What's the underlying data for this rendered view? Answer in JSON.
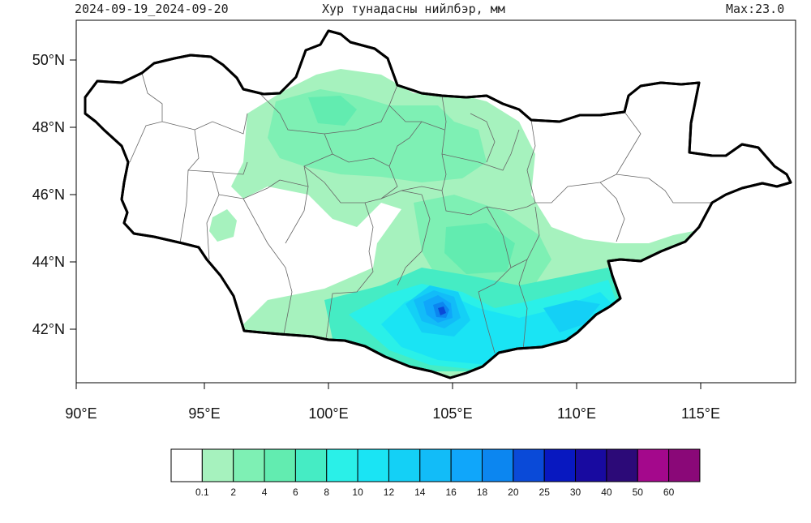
{
  "header": {
    "date_range": "2024-09-19_2024-09-20",
    "title": "Хур тунадасны нийлбэр, мм",
    "max_label": "Max:23.0"
  },
  "map": {
    "lon_range": [
      90,
      118
    ],
    "lat_range": [
      40.5,
      51
    ],
    "lon_ticks": [
      "90°E",
      "95°E",
      "100°E",
      "105°E",
      "110°E",
      "115°E"
    ],
    "lat_ticks": [
      "50°N",
      "48°N",
      "46°N",
      "44°N",
      "42°N"
    ],
    "precip_max_mm": 23.0
  },
  "colorbar": {
    "colors": [
      "#ffffff",
      "#a6f2be",
      "#7ef0b4",
      "#62ecb0",
      "#45ecc4",
      "#2af0e8",
      "#1ae4f4",
      "#14d0f6",
      "#12bcf8",
      "#10a6fa",
      "#0c86f0",
      "#0a4ad8",
      "#0818c0",
      "#180aa0",
      "#2c0a78",
      "#a4088c",
      "#8a0878"
    ],
    "labels": [
      "0.1",
      "2",
      "4",
      "6",
      "8",
      "10",
      "12",
      "14",
      "16",
      "18",
      "20",
      "25",
      "30",
      "40",
      "50",
      "60"
    ]
  }
}
